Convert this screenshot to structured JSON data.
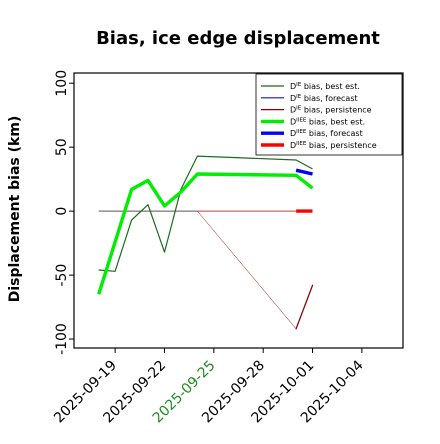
{
  "chart_data": {
    "type": "line",
    "title": "Bias, ice edge displacement",
    "ylabel": "Displacement bias (km)",
    "xlabel": "",
    "xlim": [
      "2025-09-16T12:00",
      "2025-10-06T12:00"
    ],
    "ylim": [
      -107,
      108
    ],
    "yticks": [
      -100,
      -50,
      0,
      50,
      100
    ],
    "xticks": [
      {
        "date": "2025-09-19",
        "label": "2025-09-19",
        "color": "#000000"
      },
      {
        "date": "2025-09-22",
        "label": "2025-09-22",
        "color": "#000000"
      },
      {
        "date": "2025-09-25",
        "label": "2025-09-25",
        "color": "#228b22"
      },
      {
        "date": "2025-09-28",
        "label": "2025-09-28",
        "color": "#000000"
      },
      {
        "date": "2025-10-01",
        "label": "2025-10-01",
        "color": "#000000"
      },
      {
        "date": "2025-10-04",
        "label": "2025-10-04",
        "color": "#000000"
      }
    ],
    "legend_position": "top-right",
    "series": [
      {
        "name": "DIE bias, best est.",
        "legend_main": "D",
        "legend_sup": "IE",
        "legend_rest": " bias, best est.",
        "color": "#1a6b1a",
        "width": 1.2,
        "points": [
          [
            "2025-09-18",
            -46
          ],
          [
            "2025-09-19",
            -47
          ],
          [
            "2025-09-20",
            -7
          ],
          [
            "2025-09-21",
            5
          ],
          [
            "2025-09-22",
            -32
          ],
          [
            "2025-09-23",
            17
          ],
          [
            "2025-09-24",
            43
          ],
          [
            "2025-09-30",
            40
          ],
          [
            "2025-10-01",
            33
          ]
        ]
      },
      {
        "name": "DIE bias, forecast",
        "legend_main": "D",
        "legend_sup": "IE",
        "legend_rest": " bias, forecast",
        "color": "#1515c0",
        "width": 1.2,
        "points": [
          [
            "2025-09-30",
            31
          ],
          [
            "2025-10-01",
            29
          ]
        ]
      },
      {
        "name": "DIE bias, persistence",
        "legend_main": "D",
        "legend_sup": "IE",
        "legend_rest": " bias, persistence",
        "color": "#8b0000",
        "width": 0.6,
        "points": [
          [
            "2025-09-24",
            0
          ],
          [
            "2025-09-30",
            -92
          ],
          [
            "2025-10-01",
            -58
          ]
        ],
        "segment_widths": [
          0.5,
          1.3
        ]
      },
      {
        "name": "DIIEE bias, best est.",
        "legend_main": "D",
        "legend_sup": "IIEE",
        "legend_rest": " bias, best est.",
        "color": "#00ee00",
        "width": 3.4,
        "points": [
          [
            "2025-09-18",
            -65
          ],
          [
            "2025-09-20",
            17
          ],
          [
            "2025-09-21",
            24
          ],
          [
            "2025-09-22",
            4
          ],
          [
            "2025-09-23",
            15
          ],
          [
            "2025-09-24",
            29
          ],
          [
            "2025-09-30",
            28
          ],
          [
            "2025-10-01",
            18
          ]
        ]
      },
      {
        "name": "DIIEE bias, forecast",
        "legend_main": "D",
        "legend_sup": "IIEE",
        "legend_rest": " bias, forecast",
        "color": "#0000ff",
        "width": 3.4,
        "points": [
          [
            "2025-09-30",
            32
          ],
          [
            "2025-10-01",
            29
          ]
        ]
      },
      {
        "name": "DIIEE bias, persistence",
        "legend_main": "D",
        "legend_sup": "IIEE",
        "legend_rest": " bias, persistence",
        "color": "#ff0000",
        "width": 3.4,
        "points": [
          [
            "2025-09-30",
            0
          ],
          [
            "2025-10-01",
            0
          ]
        ]
      }
    ],
    "reference_lines": [
      {
        "color": "#555555",
        "points": [
          [
            "2025-09-18",
            0
          ],
          [
            "2025-09-24",
            0
          ]
        ]
      },
      {
        "color": "#c04040",
        "points": [
          [
            "2025-09-24",
            0
          ],
          [
            "2025-09-30",
            0
          ]
        ]
      }
    ]
  }
}
